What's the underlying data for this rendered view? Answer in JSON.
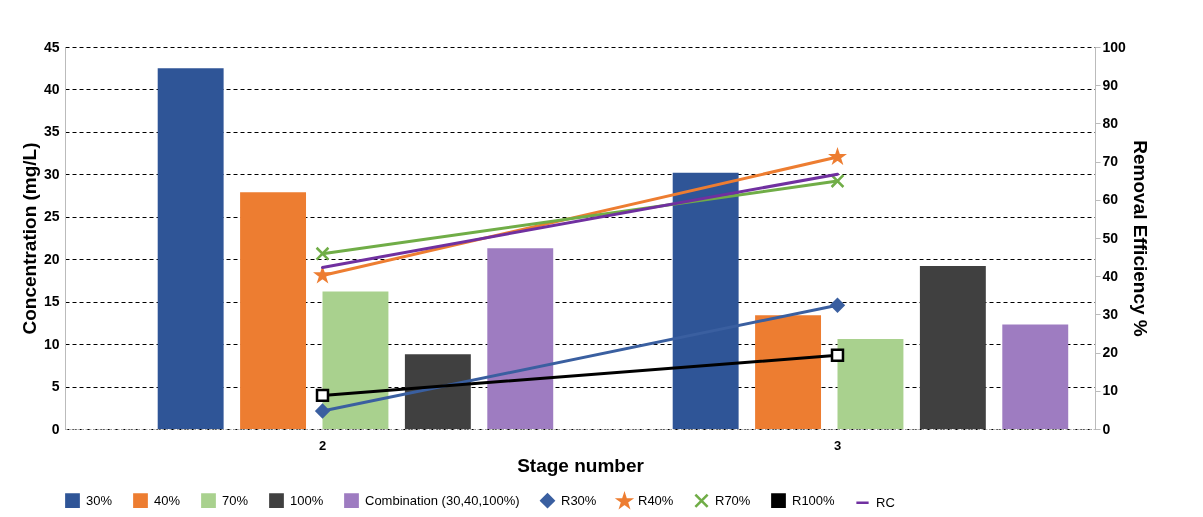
{
  "chart_data": {
    "type": "bar",
    "xlabel": "Stage number",
    "ylabel": "Concentration  (mg/L)",
    "y2label": "Removal Efficiency %",
    "categories": [
      "2",
      "3"
    ],
    "ylim": [
      0,
      45
    ],
    "yticks": [
      0,
      5,
      10,
      15,
      20,
      25,
      30,
      35,
      40,
      45
    ],
    "y2lim": [
      0,
      100
    ],
    "y2ticks": [
      0,
      10,
      20,
      30,
      40,
      50,
      60,
      70,
      80,
      90,
      100
    ],
    "grid": "y",
    "legend": "bottom",
    "series": [
      {
        "name": "30%",
        "type": "bar",
        "color": "#2f5597",
        "values": [
          42.5,
          30.2
        ]
      },
      {
        "name": "40%",
        "type": "bar",
        "color": "#ed7d31",
        "values": [
          27.9,
          13.4
        ]
      },
      {
        "name": "70%",
        "type": "bar",
        "color": "#a9d18e",
        "values": [
          16.2,
          10.6
        ]
      },
      {
        "name": "100%",
        "type": "bar",
        "color": "#404040",
        "values": [
          8.8,
          19.2
        ]
      },
      {
        "name": "Combination (30,40,100%)",
        "type": "bar",
        "color": "#9e7cc1",
        "values": [
          21.3,
          12.3
        ]
      },
      {
        "name": "R30%",
        "type": "line",
        "axis": "y2",
        "marker": "diamond",
        "color": "#3a5fa0",
        "values": [
          4.7,
          32.4
        ]
      },
      {
        "name": "R40%",
        "type": "line",
        "axis": "y2",
        "marker": "star",
        "color": "#ed7d31",
        "values": [
          40.2,
          71.2
        ]
      },
      {
        "name": "R70%",
        "type": "line",
        "axis": "y2",
        "marker": "cross",
        "color": "#70ad47",
        "values": [
          45.9,
          64.9
        ]
      },
      {
        "name": "R100%",
        "type": "line",
        "axis": "y2",
        "marker": "square",
        "color": "#000000",
        "values": [
          8.8,
          19.3
        ]
      },
      {
        "name": "RC",
        "type": "line",
        "axis": "y2",
        "marker": "none",
        "color": "#7030a0",
        "values": [
          42.3,
          66.7
        ]
      }
    ]
  }
}
